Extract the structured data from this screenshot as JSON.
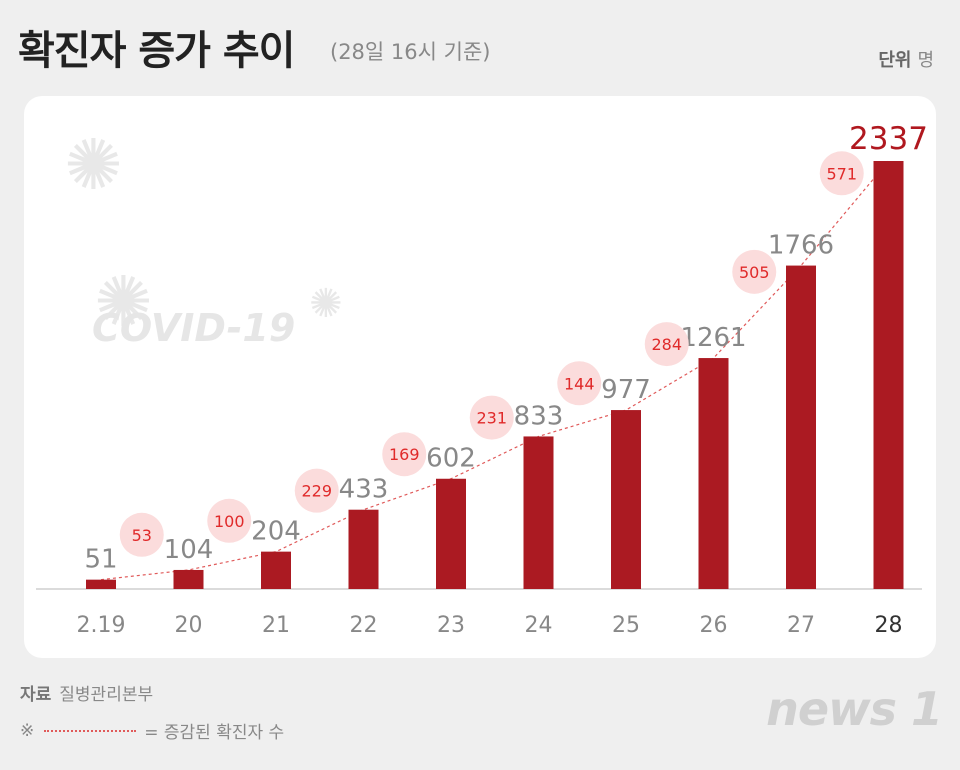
{
  "header": {
    "title": "확진자 증가 추이",
    "subtitle": "(28일 16시 기준)",
    "unit_label": "단위",
    "unit": "명"
  },
  "watermark": {
    "text": "COVID-19"
  },
  "footer": {
    "source_label": "자료",
    "source": "질병관리본부",
    "legend_mark": "※",
    "legend_text": "= 증감된 확진자 수",
    "logo": "news 1"
  },
  "colors": {
    "bar": "#ab1a22",
    "last_value": "#b0181f",
    "value": "#888888",
    "bubble": "#fbdcdc",
    "bubble_text": "#e02a2a",
    "dashed_line": "#e05a5a"
  },
  "chart_data": {
    "type": "bar",
    "categories": [
      "2.19",
      "20",
      "21",
      "22",
      "23",
      "24",
      "25",
      "26",
      "27",
      "28"
    ],
    "values": [
      51,
      104,
      204,
      433,
      602,
      833,
      977,
      1261,
      1766,
      2337
    ],
    "increases": [
      53,
      100,
      229,
      169,
      231,
      144,
      284,
      505,
      571
    ],
    "ylim": [
      0,
      2337
    ],
    "grid": false
  }
}
